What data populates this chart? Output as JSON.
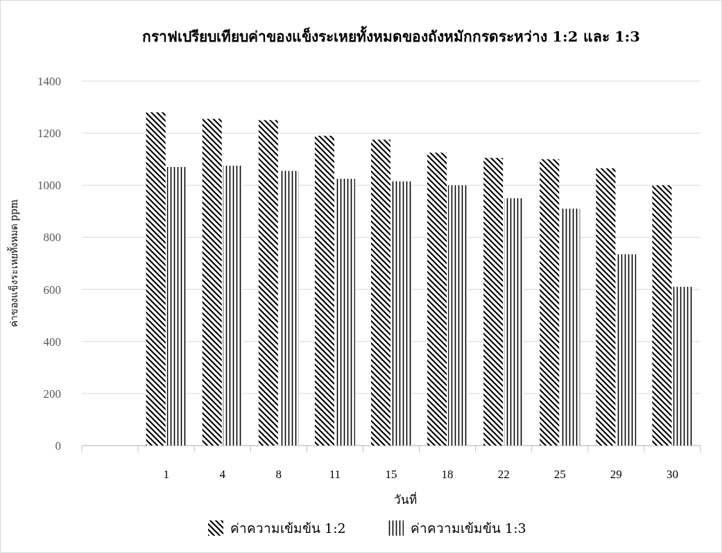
{
  "chart_data": {
    "type": "bar",
    "title": "กราฟเปรียบเทียบค่าของแข็งระเหยทั้งหมดของถังหมักกรดระหว่าง  1:2  และ 1:3",
    "xlabel": "วันที่",
    "ylabel": "ค่าของแข็งระเหยทั้งหมด ppm",
    "categories": [
      null,
      "1",
      "4",
      "8",
      "11",
      "15",
      "18",
      "22",
      "25",
      "29",
      "30"
    ],
    "series": [
      {
        "name": "ค่าความเข้มข้น 1:2",
        "color": "#000000",
        "values": [
          null,
          1280,
          1255,
          1250,
          1190,
          1175,
          1125,
          1105,
          1100,
          1065,
          1000
        ]
      },
      {
        "name": "ค่าความเข้มข้น 1:3",
        "color": "#000000",
        "values": [
          null,
          1070,
          1075,
          1055,
          1025,
          1015,
          1000,
          950,
          910,
          735,
          610
        ]
      }
    ],
    "ylim": [
      0,
      1400
    ],
    "yticks": [
      0,
      200,
      400,
      600,
      800,
      1000,
      1200,
      1400
    ],
    "grid": "y",
    "legend": "bottom"
  }
}
